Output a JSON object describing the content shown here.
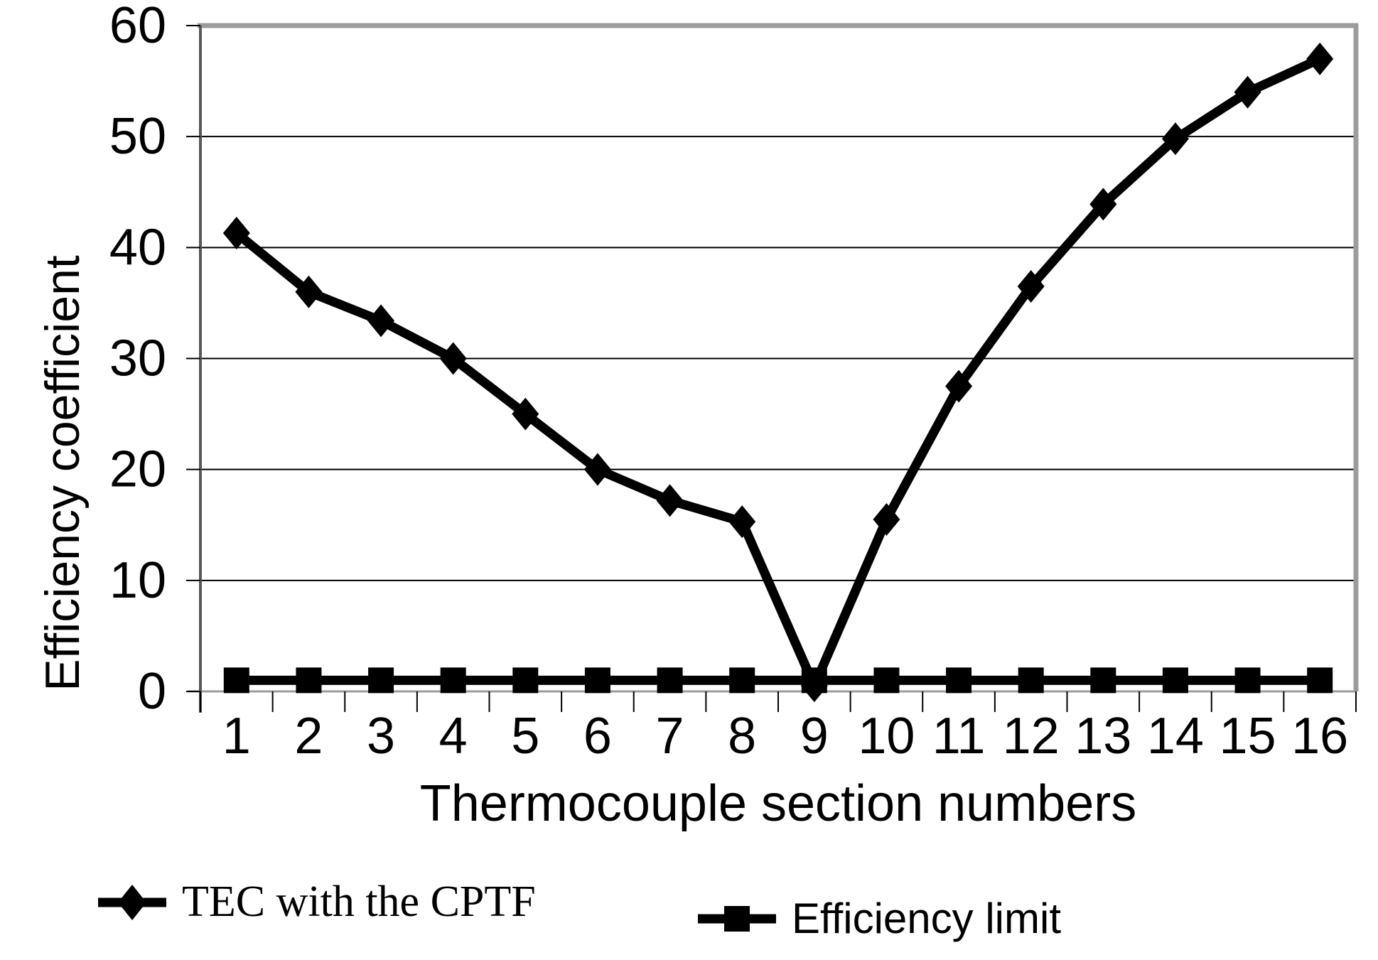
{
  "chart_data": {
    "type": "line",
    "title": "",
    "xlabel": "Thermocouple section numbers",
    "ylabel": "Efficiency coefficient",
    "categories": [
      "1",
      "2",
      "3",
      "4",
      "5",
      "6",
      "7",
      "8",
      "9",
      "10",
      "11",
      "12",
      "13",
      "14",
      "15",
      "16"
    ],
    "series": [
      {
        "name": "TEC with the CPTF",
        "marker": "diamond",
        "color": "#000000",
        "values": [
          41.3,
          36.0,
          33.4,
          30.0,
          25.0,
          20.0,
          17.2,
          15.3,
          0.5,
          15.5,
          27.5,
          36.5,
          43.9,
          49.8,
          54.0,
          57.0
        ]
      },
      {
        "name": "Efficiency limit",
        "marker": "square",
        "color": "#000000",
        "values": [
          1,
          1,
          1,
          1,
          1,
          1,
          1,
          1,
          1,
          1,
          1,
          1,
          1,
          1,
          1,
          1
        ]
      }
    ],
    "ylim": [
      0,
      60
    ],
    "yticks": [
      0,
      10,
      20,
      30,
      40,
      50,
      60
    ],
    "grid": true,
    "legend_position": "bottom"
  },
  "colors": {
    "background": "#ffffff",
    "grid": "#000000",
    "plot_border": "#9c9c9c",
    "axis_left": "#58585a",
    "axis_bottom": "#9c9c9c",
    "series": "#000000"
  }
}
